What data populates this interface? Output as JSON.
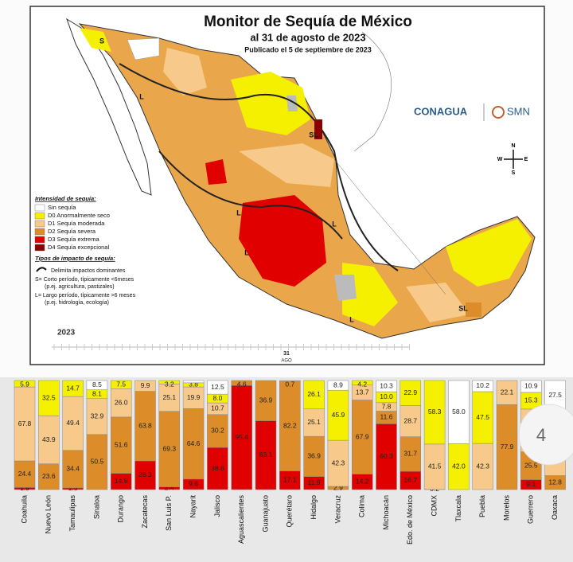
{
  "map": {
    "title": "Monitor de Sequía de México",
    "subtitle": "al 31 de agosto de 2023",
    "published": "Publicado el 5 de septiembre de 2023",
    "legend_title": "Intensidad de sequía:",
    "impact_title": "Tipos de impacto de sequía:",
    "impact_lines": [
      "Delimita impactos dominantes",
      "S= Corto período, típicamente <6meses",
      "(p.ej. agricultura, pastizales)",
      "L= Largo período, típicamente >6 meses",
      "(p.ej. hidrología, ecología)"
    ],
    "logos": [
      "CONAGUA",
      "SMN"
    ],
    "compass": [
      "N",
      "S",
      "E",
      "W"
    ],
    "region_labels": [
      "S",
      "L",
      "L",
      "SL",
      "L",
      "L",
      "L",
      "SL"
    ],
    "timeline": {
      "year": "2023",
      "day": "31",
      "month": "AGO"
    }
  },
  "page_number": "4",
  "chart_data": {
    "type": "bar",
    "stacked": true,
    "categories": [
      "Coahuila",
      "Nuevo León",
      "Tamaulipas",
      "Sinaloa",
      "Durango",
      "Zacatecas",
      "San Luis P.",
      "Nayarit",
      "Jalisco",
      "Aguascalientes",
      "Guanajuato",
      "Querétaro",
      "Hidalgo",
      "Veracruz",
      "Colima",
      "Michoacán",
      "Edo. de México",
      "CDMX",
      "Tlaxcala",
      "Puebla",
      "Morelos",
      "Guerrero",
      "Oaxaca"
    ],
    "ylim": [
      0,
      100
    ],
    "series": [
      {
        "name": "D4 Sequía excepcional",
        "color": "#8b0000",
        "values": [
          0,
          0,
          0,
          0,
          0,
          0,
          0,
          0,
          0,
          0,
          0,
          0,
          0,
          0,
          0,
          0,
          0,
          0,
          0,
          0,
          0,
          0,
          0
        ],
        "value_labels": [
          null,
          null,
          null,
          null,
          null,
          null,
          null,
          null,
          null,
          null,
          null,
          null,
          null,
          null,
          null,
          null,
          null,
          null,
          null,
          null,
          null,
          null,
          null
        ]
      },
      {
        "name": "D3 Sequía extrema",
        "color": "#e00000",
        "values": [
          1.9,
          0,
          1.5,
          0,
          14.9,
          26.3,
          2.4,
          9.6,
          38.6,
          95.4,
          63.1,
          17.1,
          11.9,
          0,
          14.2,
          60.3,
          16.7,
          0,
          0,
          0,
          0,
          9.1,
          0
        ],
        "value_labels": [
          "1.9",
          null,
          "1.5",
          null,
          "14.9",
          "26.3",
          "2.4",
          "9.6",
          "38.6",
          "95.4",
          "63.1",
          "17.1",
          "11.9",
          null,
          "14.2",
          "60.3",
          "16.7",
          null,
          null,
          null,
          null,
          "9.1",
          null
        ]
      },
      {
        "name": "D2 Sequía severa",
        "color": "#dc8c28",
        "values": [
          24.4,
          23.6,
          34.4,
          50.5,
          51.6,
          63.8,
          69.3,
          64.6,
          30.2,
          4.6,
          36.9,
          82.2,
          36.9,
          2.9,
          67.9,
          11.6,
          31.7,
          0.2,
          0,
          0,
          77.9,
          25.5,
          12.8
        ],
        "value_labels": [
          "24.4",
          "23.6",
          "34.4",
          "50.5",
          "51.6",
          "63.8",
          "69.3",
          "64.6",
          "30.2",
          "4.6",
          "36.9",
          "82.2",
          "36.9",
          "2.9",
          "67.9",
          "11.6",
          "31.7",
          "0.2",
          null,
          null,
          "77.9",
          "25.5",
          "12.8"
        ]
      },
      {
        "name": "D1 Sequía moderada",
        "color": "#f7c98a",
        "values": [
          67.8,
          43.9,
          49.4,
          32.9,
          26.0,
          9.9,
          25.1,
          19.9,
          10.7,
          0,
          0,
          0.7,
          25.1,
          42.3,
          13.7,
          7.8,
          28.7,
          41.5,
          0,
          42.3,
          22.1,
          39.2,
          34.3
        ],
        "value_labels": [
          "67.8",
          "43.9",
          "49.4",
          "32.9",
          "26.0",
          "9.9",
          "25.1",
          "19.9",
          "10.7",
          null,
          null,
          "0.7",
          "25.1",
          "42.3",
          "13.7",
          "7.8",
          "28.7",
          "41.5",
          null,
          "42.3",
          "22.1",
          null,
          null
        ]
      },
      {
        "name": "D0 Anormalmente seco",
        "color": "#f5f000",
        "values": [
          5.9,
          32.5,
          14.7,
          8.1,
          7.5,
          0,
          3.2,
          3.8,
          8.0,
          0,
          0,
          0,
          26.1,
          45.9,
          4.2,
          10.0,
          22.9,
          58.3,
          42.0,
          47.5,
          0,
          15.3,
          25.4
        ],
        "value_labels": [
          "5.9",
          "32.5",
          "14.7",
          "8.1",
          "7.5",
          null,
          "3.2",
          "3.8",
          "8.0",
          null,
          null,
          null,
          "26.1",
          "45.9",
          "4.2",
          "10.0",
          "22.9",
          "58.3",
          "42.0",
          "47.5",
          null,
          "15.3",
          "25.4"
        ]
      },
      {
        "name": "Sin sequía",
        "color": "#ffffff",
        "values": [
          0,
          0,
          0,
          8.5,
          0,
          0,
          0,
          2.1,
          12.5,
          0,
          0,
          0,
          0,
          8.9,
          0,
          10.3,
          0,
          0,
          58.0,
          10.2,
          0,
          10.9,
          27.5
        ],
        "value_labels": [
          null,
          null,
          null,
          "8.5",
          null,
          null,
          null,
          null,
          "12.5",
          null,
          null,
          null,
          null,
          "8.9",
          null,
          "10.3",
          null,
          null,
          "58.0",
          "10.2",
          null,
          "10.9",
          "27.5"
        ]
      }
    ]
  }
}
